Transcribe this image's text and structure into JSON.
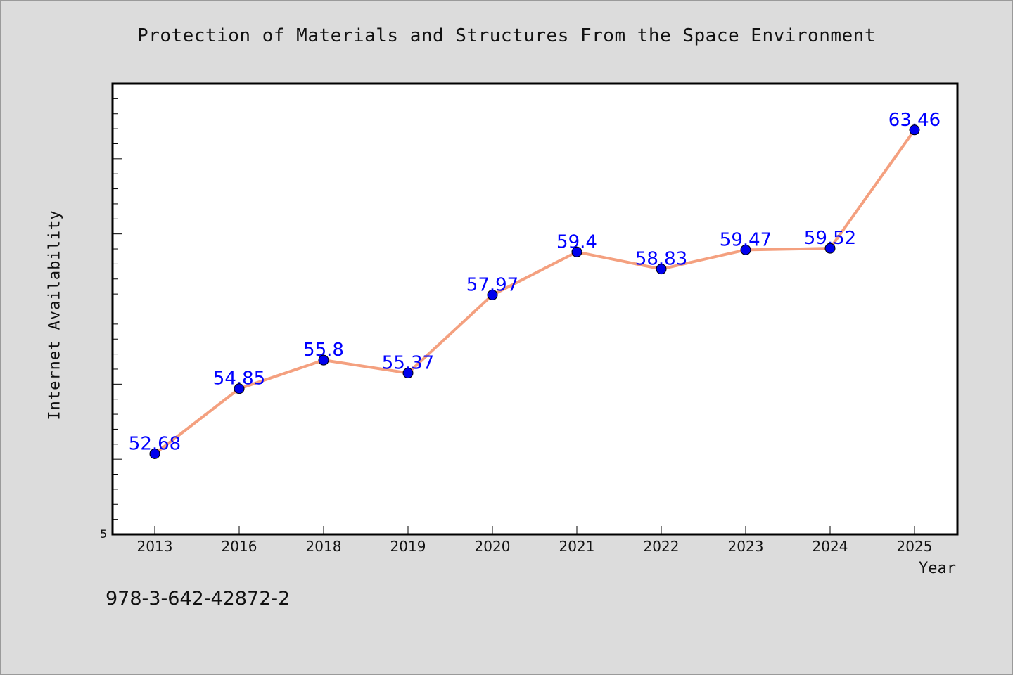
{
  "chart_data": {
    "type": "line",
    "title": "Protection of Materials and Structures From the Space Environment",
    "xlabel": "Year",
    "ylabel": "Internet Availability",
    "categories": [
      "2013",
      "2016",
      "2018",
      "2019",
      "2020",
      "2021",
      "2022",
      "2023",
      "2024",
      "2025"
    ],
    "series": [
      {
        "values": [
          52.68,
          54.85,
          55.8,
          55.37,
          57.97,
          59.4,
          58.83,
          59.47,
          59.52,
          63.46
        ],
        "data_labels": [
          "52.68",
          "54.85",
          "55.8",
          "55.37",
          "57.97",
          "59.4",
          "58.83",
          "59.47",
          "59.52",
          "63.46"
        ]
      }
    ],
    "y_tick_labels": [
      "5"
    ],
    "ylim": [
      50,
      65
    ],
    "grid": false,
    "line_color": "#f4a07f",
    "marker_color": "#0000ee",
    "label_color": "#0000ff"
  },
  "footnote": "978-3-642-42872-2"
}
